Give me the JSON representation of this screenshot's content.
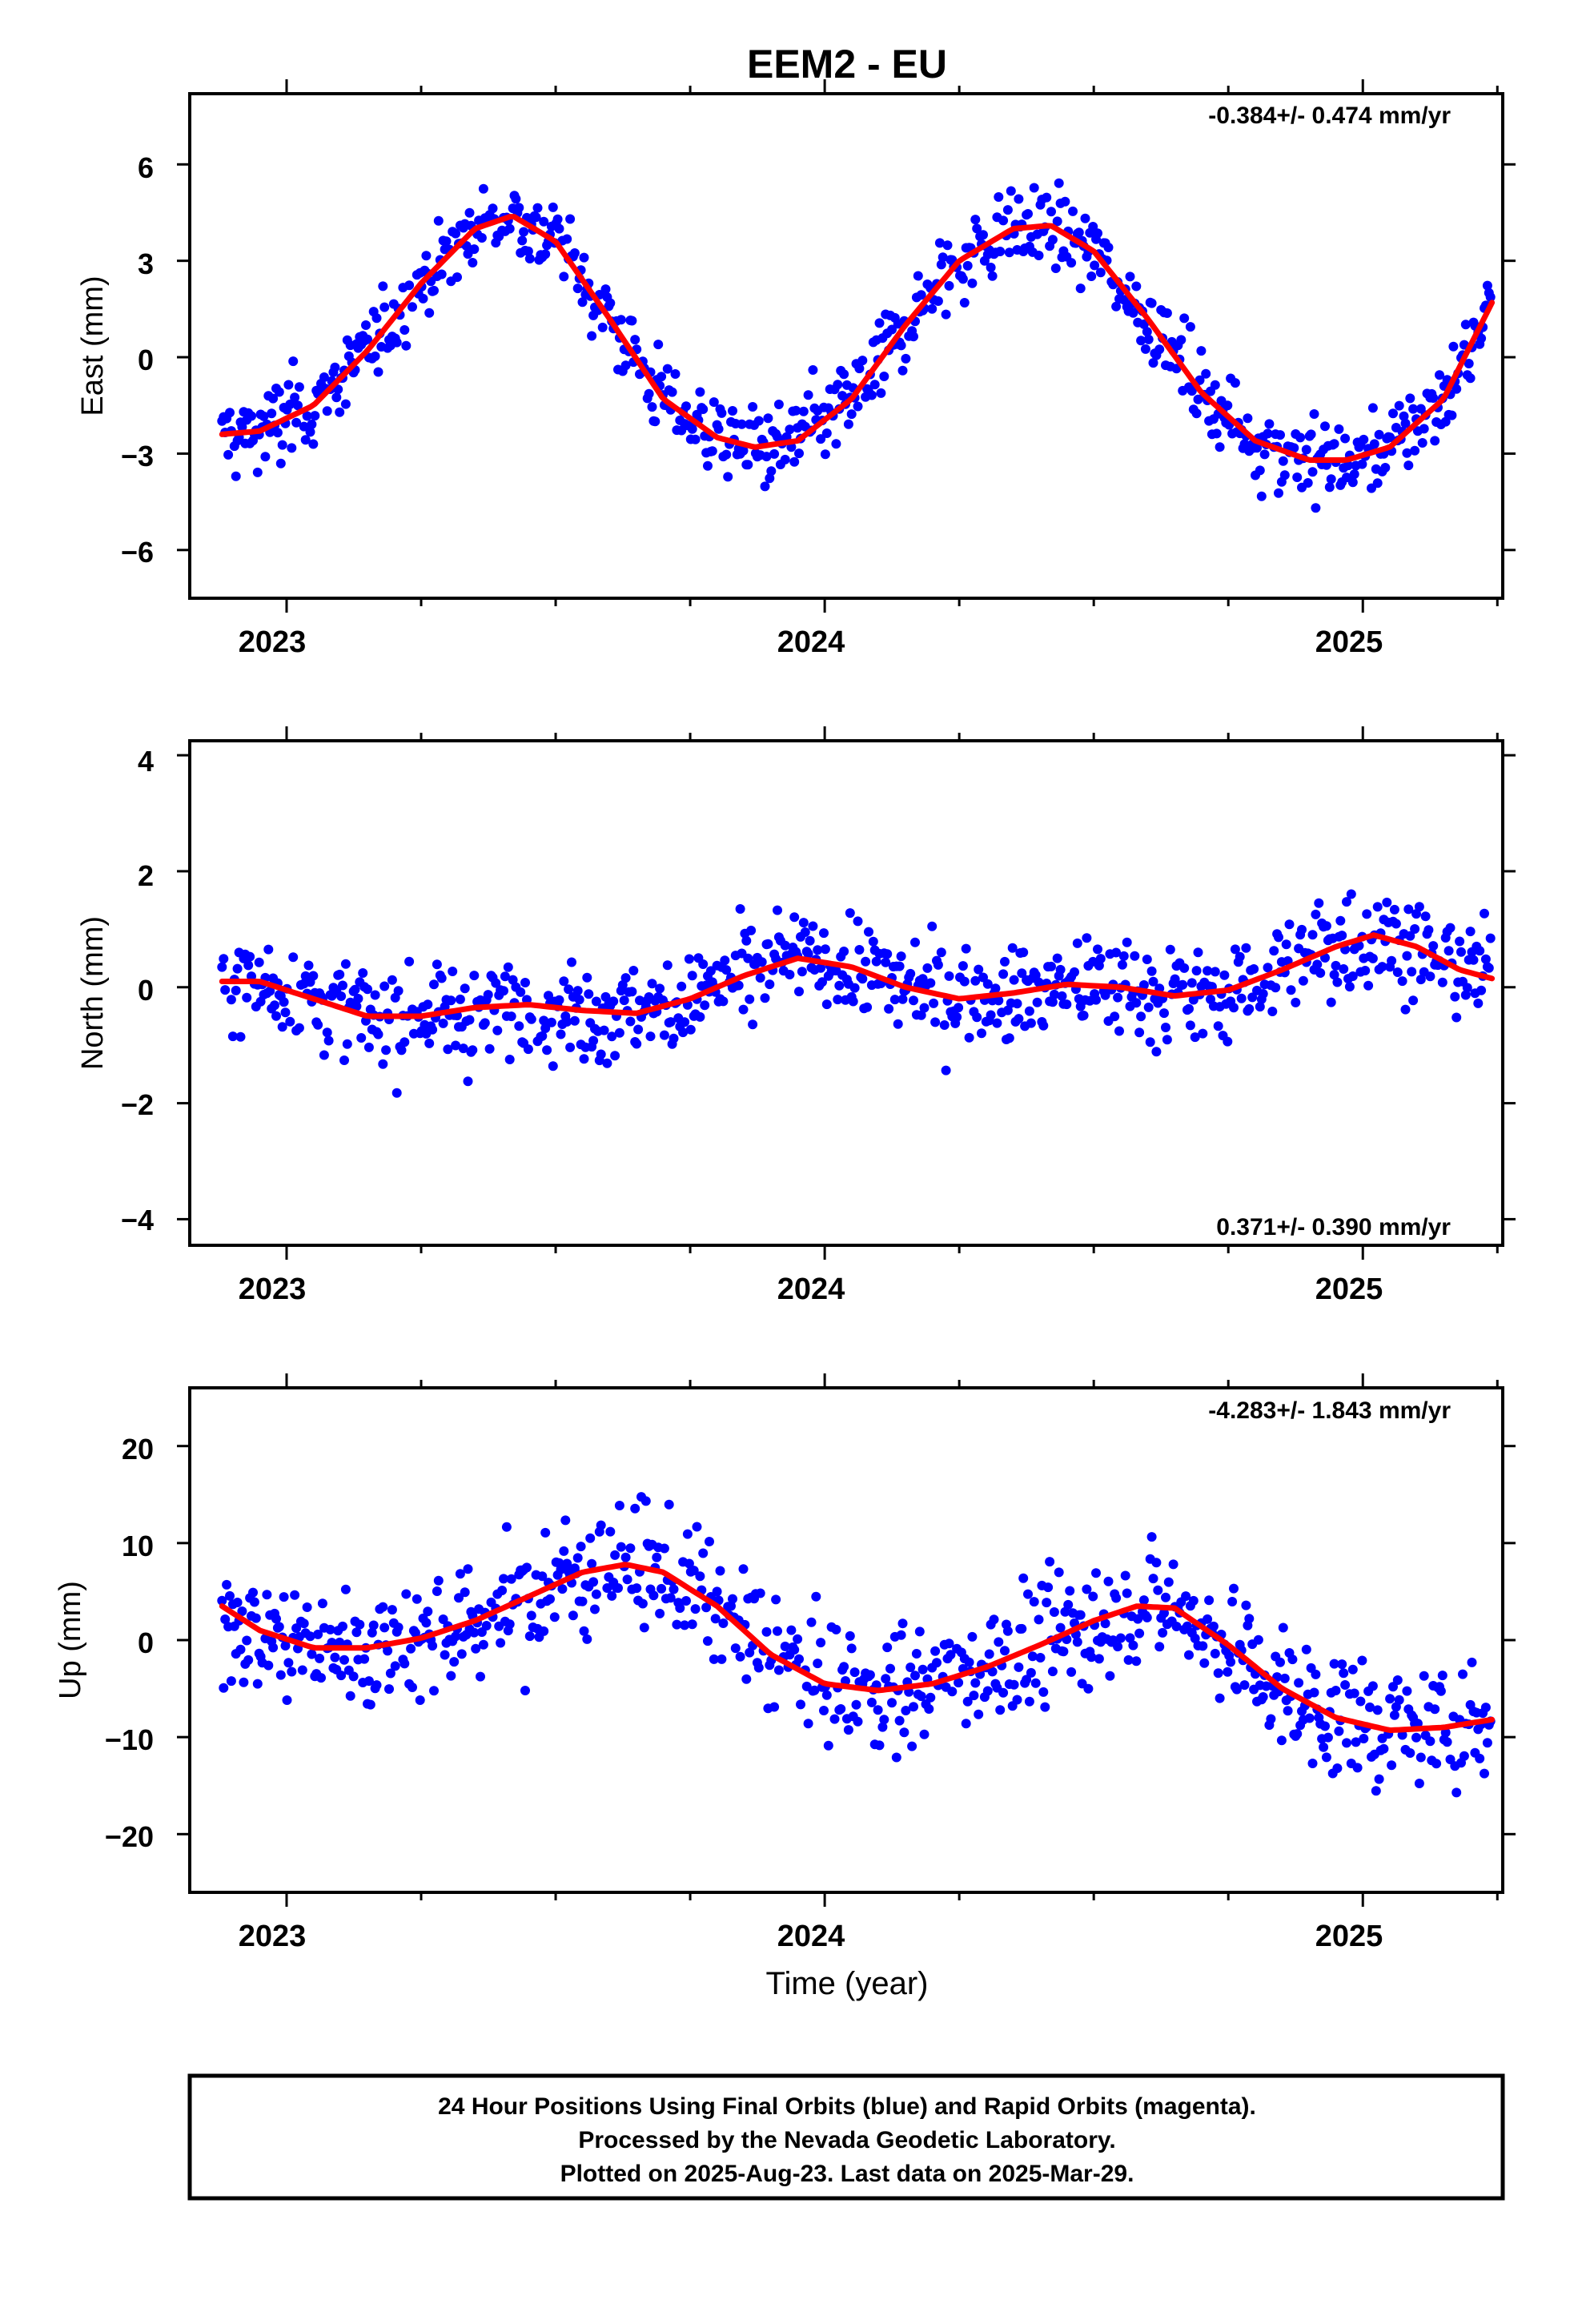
{
  "chart_data": {
    "title": "EEM2 - EU",
    "xlabel": "Time (year)",
    "x_ticks": [
      "2023",
      "2024",
      "2025"
    ],
    "legend": "none",
    "grid": false,
    "colors": {
      "final_orbits": "#0000ff",
      "rapid_orbits": "#ff00ff",
      "fit": "#ff0000"
    },
    "panels": [
      {
        "type": "scatter",
        "ylabel": "East (mm)",
        "yticks": [
          "−6",
          "−3",
          "0",
          "3",
          "6"
        ],
        "ylim": [
          -7.5,
          8.2
        ],
        "xlim": [
          2022.82,
          2025.26
        ],
        "rate": "-0.384+/- 0.474 mm/yr",
        "rate_position": "top-right",
        "fit_x": [
          2022.88,
          2022.95,
          2023.05,
          2023.15,
          2023.25,
          2023.35,
          2023.42,
          2023.5,
          2023.6,
          2023.7,
          2023.8,
          2023.87,
          2023.95,
          2024.05,
          2024.15,
          2024.25,
          2024.35,
          2024.42,
          2024.5,
          2024.6,
          2024.7,
          2024.8,
          2024.9,
          2024.97,
          2025.05,
          2025.15,
          2025.24
        ],
        "fit_y": [
          -2.4,
          -2.3,
          -1.5,
          0.2,
          2.3,
          4.0,
          4.4,
          3.6,
          1.2,
          -1.3,
          -2.5,
          -2.8,
          -2.6,
          -1.3,
          1.0,
          3.0,
          4.0,
          4.1,
          3.3,
          1.2,
          -1.1,
          -2.6,
          -3.2,
          -3.2,
          -2.8,
          -1.3,
          1.7
        ]
      },
      {
        "type": "scatter",
        "ylabel": "North (mm)",
        "yticks": [
          "−4",
          "−2",
          "0",
          "2",
          "4"
        ],
        "ylim": [
          -4.45,
          4.25
        ],
        "xlim": [
          2022.82,
          2025.26
        ],
        "rate": "0.371+/- 0.390 mm/yr",
        "rate_position": "bottom-right",
        "fit_x": [
          2022.88,
          2022.95,
          2023.05,
          2023.15,
          2023.25,
          2023.35,
          2023.45,
          2023.55,
          2023.65,
          2023.75,
          2023.85,
          2023.95,
          2024.05,
          2024.15,
          2024.25,
          2024.35,
          2024.45,
          2024.55,
          2024.65,
          2024.75,
          2024.85,
          2024.95,
          2025.02,
          2025.1,
          2025.18,
          2025.24
        ],
        "fit_y": [
          0.1,
          0.1,
          -0.2,
          -0.5,
          -0.5,
          -0.35,
          -0.3,
          -0.4,
          -0.45,
          -0.2,
          0.2,
          0.5,
          0.35,
          0.0,
          -0.2,
          -0.1,
          0.05,
          0.0,
          -0.15,
          -0.05,
          0.3,
          0.7,
          0.9,
          0.7,
          0.3,
          0.15
        ]
      },
      {
        "type": "scatter",
        "ylabel": "Up (mm)",
        "yticks": [
          "−20",
          "−10",
          "0",
          "10",
          "20"
        ],
        "ylim": [
          -26,
          26
        ],
        "xlim": [
          2022.82,
          2025.26
        ],
        "rate": "-4.283+/- 1.843 mm/yr",
        "rate_position": "top-right",
        "fit_x": [
          2022.88,
          2022.95,
          2023.05,
          2023.15,
          2023.25,
          2023.35,
          2023.45,
          2023.55,
          2023.63,
          2023.7,
          2023.8,
          2023.9,
          2024.0,
          2024.1,
          2024.2,
          2024.3,
          2024.4,
          2024.5,
          2024.58,
          2024.65,
          2024.75,
          2024.85,
          2024.95,
          2025.05,
          2025.15,
          2025.24
        ],
        "fit_y": [
          3.5,
          1.0,
          -0.8,
          -0.8,
          0.2,
          2.0,
          4.5,
          7.0,
          7.8,
          7.0,
          3.5,
          -1.5,
          -4.5,
          -5.2,
          -4.5,
          -2.8,
          -0.5,
          2.0,
          3.5,
          3.3,
          -0.5,
          -5.0,
          -8.0,
          -9.3,
          -9.0,
          -8.2
        ]
      }
    ]
  },
  "footer": {
    "line1": "24 Hour Positions Using Final Orbits (blue) and Rapid Orbits (magenta).",
    "line2": "Processed by the Nevada Geodetic Laboratory.",
    "line3": "Plotted on 2025-Aug-23. Last data on 2025-Mar-29."
  }
}
